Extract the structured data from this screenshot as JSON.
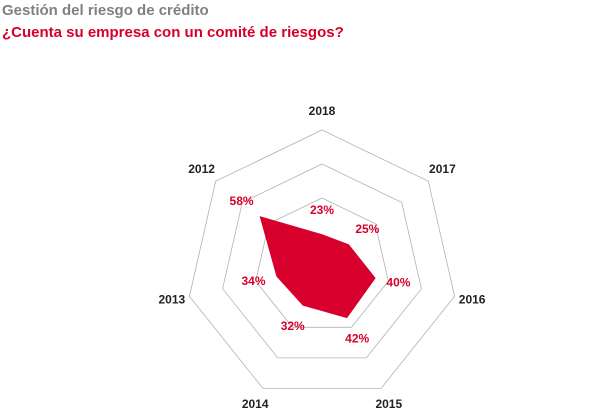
{
  "chart_data": {
    "type": "radar",
    "title": "Gestión del riesgo de crédito",
    "subtitle": "¿Cuenta su empresa con un comité de riesgos?",
    "categories": [
      "2018",
      "2017",
      "2016",
      "2015",
      "2014",
      "2013",
      "2012"
    ],
    "values": [
      23,
      25,
      40,
      42,
      32,
      34,
      58
    ],
    "value_labels": [
      "23%",
      "25%",
      "40%",
      "42%",
      "32%",
      "34%",
      "58%"
    ],
    "color": "#d7002c",
    "rlim": [
      0,
      100
    ],
    "rticks": [
      50,
      75,
      100
    ],
    "grid": true
  }
}
